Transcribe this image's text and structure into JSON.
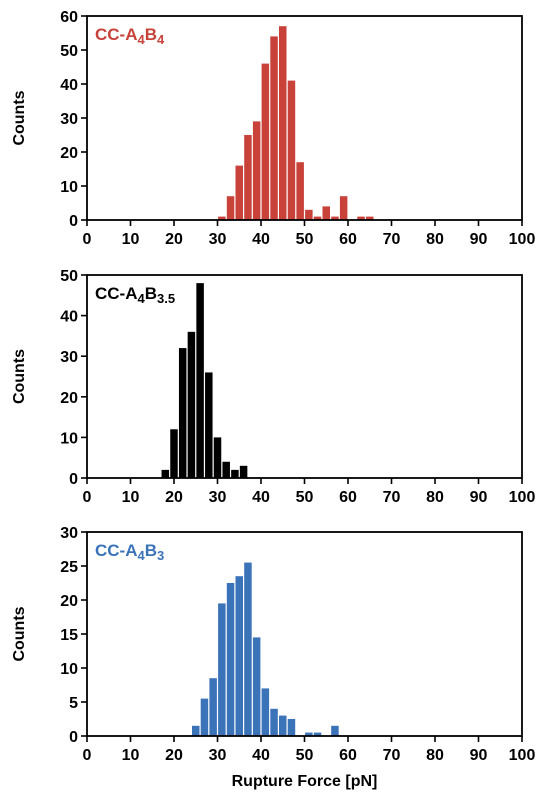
{
  "chart_data": [
    {
      "type": "bar",
      "label": {
        "main": "CC-A",
        "sub1": "4",
        "mid": "B",
        "sub2": "4"
      },
      "color": "#c8423a",
      "ylabel": "Counts",
      "xlim": [
        0,
        100
      ],
      "ylim": [
        0,
        60
      ],
      "xticks": [
        0,
        10,
        20,
        30,
        40,
        50,
        60,
        70,
        80,
        90,
        100
      ],
      "yticks": [
        0,
        10,
        20,
        30,
        40,
        50,
        60
      ],
      "bin_width": 2,
      "bins": [
        {
          "x": 30,
          "count": 1
        },
        {
          "x": 32,
          "count": 7
        },
        {
          "x": 34,
          "count": 16
        },
        {
          "x": 36,
          "count": 25
        },
        {
          "x": 38,
          "count": 29
        },
        {
          "x": 40,
          "count": 46
        },
        {
          "x": 42,
          "count": 54
        },
        {
          "x": 44,
          "count": 57
        },
        {
          "x": 46,
          "count": 41
        },
        {
          "x": 48,
          "count": 17
        },
        {
          "x": 50,
          "count": 3
        },
        {
          "x": 52,
          "count": 1
        },
        {
          "x": 54,
          "count": 4
        },
        {
          "x": 56,
          "count": 1
        },
        {
          "x": 58,
          "count": 7
        },
        {
          "x": 62,
          "count": 1
        },
        {
          "x": 64,
          "count": 1
        }
      ]
    },
    {
      "type": "bar",
      "label": {
        "main": "CC-A",
        "sub1": "4",
        "mid": "B",
        "sub2": "3.5"
      },
      "color": "#000000",
      "ylabel": "Counts",
      "xlim": [
        0,
        100
      ],
      "ylim": [
        0,
        50
      ],
      "xticks": [
        0,
        10,
        20,
        30,
        40,
        50,
        60,
        70,
        80,
        90,
        100
      ],
      "yticks": [
        0,
        10,
        20,
        30,
        40,
        50
      ],
      "bin_width": 2,
      "bins": [
        {
          "x": 17,
          "count": 2
        },
        {
          "x": 19,
          "count": 12
        },
        {
          "x": 21,
          "count": 32
        },
        {
          "x": 23,
          "count": 36
        },
        {
          "x": 25,
          "count": 48
        },
        {
          "x": 27,
          "count": 26
        },
        {
          "x": 29,
          "count": 10
        },
        {
          "x": 31,
          "count": 4
        },
        {
          "x": 33,
          "count": 2
        },
        {
          "x": 35,
          "count": 3
        }
      ]
    },
    {
      "type": "bar",
      "label": {
        "main": "CC-A",
        "sub1": "4",
        "mid": "B",
        "sub2": "3"
      },
      "color": "#3b73b9",
      "ylabel": "Counts",
      "xlabel": "Rupture Force [pN]",
      "xlim": [
        0,
        100
      ],
      "ylim": [
        0,
        30
      ],
      "xticks": [
        0,
        10,
        20,
        30,
        40,
        50,
        60,
        70,
        80,
        90,
        100
      ],
      "yticks": [
        0,
        5,
        10,
        15,
        20,
        25,
        30
      ],
      "bin_width": 2,
      "bins": [
        {
          "x": 24,
          "count": 1.5
        },
        {
          "x": 26,
          "count": 5.5
        },
        {
          "x": 28,
          "count": 8.5
        },
        {
          "x": 30,
          "count": 19.5
        },
        {
          "x": 32,
          "count": 22.5
        },
        {
          "x": 34,
          "count": 23.5
        },
        {
          "x": 36,
          "count": 25.5
        },
        {
          "x": 38,
          "count": 14.5
        },
        {
          "x": 40,
          "count": 7
        },
        {
          "x": 42,
          "count": 4
        },
        {
          "x": 44,
          "count": 3
        },
        {
          "x": 46,
          "count": 2.5
        },
        {
          "x": 50,
          "count": 0.5
        },
        {
          "x": 52,
          "count": 0.5
        },
        {
          "x": 56,
          "count": 1.5
        }
      ]
    }
  ]
}
